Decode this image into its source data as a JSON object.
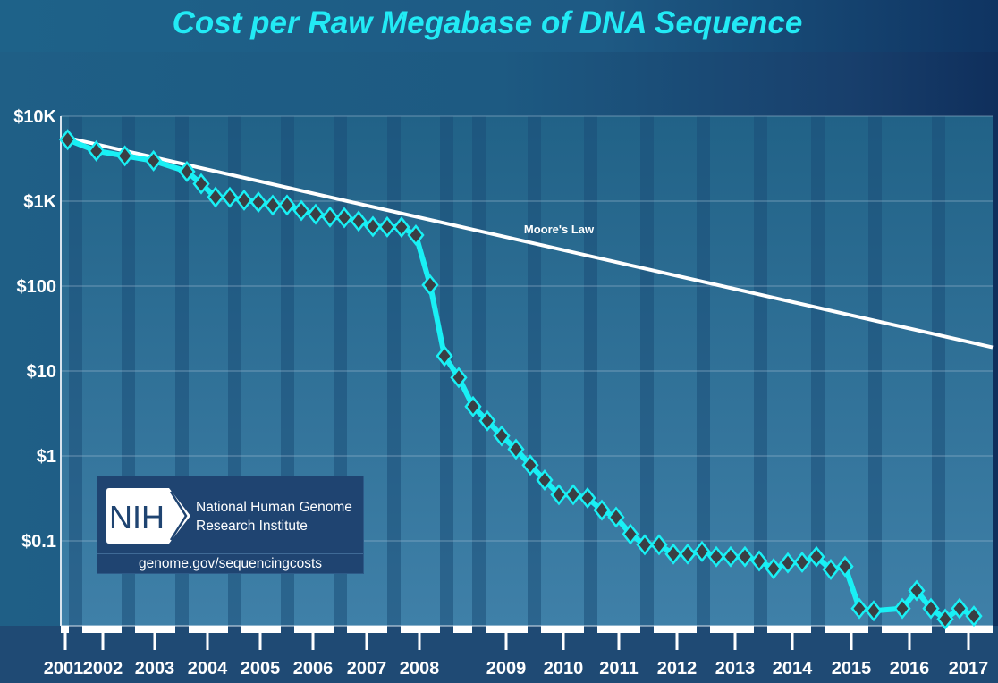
{
  "chart_data": {
    "type": "line",
    "title": "Cost per Raw Megabase of DNA Sequence",
    "xlabel": "",
    "ylabel": "",
    "y_scale": "log",
    "ylim": [
      0.01,
      10000
    ],
    "y_ticks": [
      {
        "value": 10000,
        "label": "$10K"
      },
      {
        "value": 1000,
        "label": "$1K"
      },
      {
        "value": 100,
        "label": "$100"
      },
      {
        "value": 10,
        "label": "$10"
      },
      {
        "value": 1,
        "label": "$1"
      },
      {
        "value": 0.1,
        "label": "$0.1"
      }
    ],
    "x_ticks": [
      "2001",
      "2002",
      "2003",
      "2004",
      "2005",
      "2006",
      "2007",
      "2008",
      "2009",
      "2010",
      "2011",
      "2012",
      "2013",
      "2014",
      "2015",
      "2016",
      "2017"
    ],
    "grid": true,
    "colors": {
      "series": "#19f0f5",
      "marker_fill": "#3a3f44",
      "moores_law": "#ffffff",
      "title": "#22eaf5"
    },
    "series": [
      {
        "name": "",
        "marker": "diamond",
        "x": [
          "2001-09",
          "2002-03",
          "2002-09",
          "2003-03",
          "2003-10",
          "2004-01",
          "2004-04",
          "2004-07",
          "2004-10",
          "2005-01",
          "2005-04",
          "2005-07",
          "2005-10",
          "2006-01",
          "2006-04",
          "2006-07",
          "2006-10",
          "2007-01",
          "2007-04",
          "2007-07",
          "2007-10",
          "2008-01",
          "2008-04",
          "2008-07",
          "2008-10",
          "2009-01",
          "2009-04",
          "2009-07",
          "2009-10",
          "2010-01",
          "2010-04",
          "2010-07",
          "2010-10",
          "2011-01",
          "2011-04",
          "2011-07",
          "2011-10",
          "2012-01",
          "2012-04",
          "2012-07",
          "2012-10",
          "2013-01",
          "2013-04",
          "2013-07",
          "2013-10",
          "2014-01",
          "2014-04",
          "2014-07",
          "2014-10",
          "2015-01",
          "2015-04",
          "2015-07",
          "2015-10",
          "2016-04",
          "2016-07",
          "2016-10",
          "2017-01",
          "2017-04",
          "2017-07"
        ],
        "values": [
          5292,
          3899,
          3413,
          2986,
          2230,
          1598,
          1115,
          1107,
          1028,
          974,
          897,
          899,
          775,
          702,
          651,
          639,
          582,
          502,
          496,
          493,
          398,
          103,
          15.03,
          8.36,
          3.81,
          2.59,
          1.72,
          1.2,
          0.78,
          0.52,
          0.35,
          0.35,
          0.32,
          0.23,
          0.19,
          0.12,
          0.09,
          0.09,
          0.07,
          0.07,
          0.075,
          0.065,
          0.065,
          0.065,
          0.058,
          0.047,
          0.055,
          0.056,
          0.065,
          0.046,
          0.05,
          0.016,
          0.015,
          0.016,
          0.026,
          0.016,
          0.012,
          0.016,
          0.013
        ]
      },
      {
        "name": "Moore's Law",
        "x": [
          "2001-07",
          "2017-12"
        ],
        "values": [
          5500,
          19
        ]
      }
    ],
    "annotations": [
      {
        "text": "Moore's Law"
      }
    ]
  },
  "logo": {
    "abbr": "NIH",
    "name_line1": "National Human Genome",
    "name_line2": "Research Institute",
    "url": "genome.gov/sequencingcosts"
  }
}
